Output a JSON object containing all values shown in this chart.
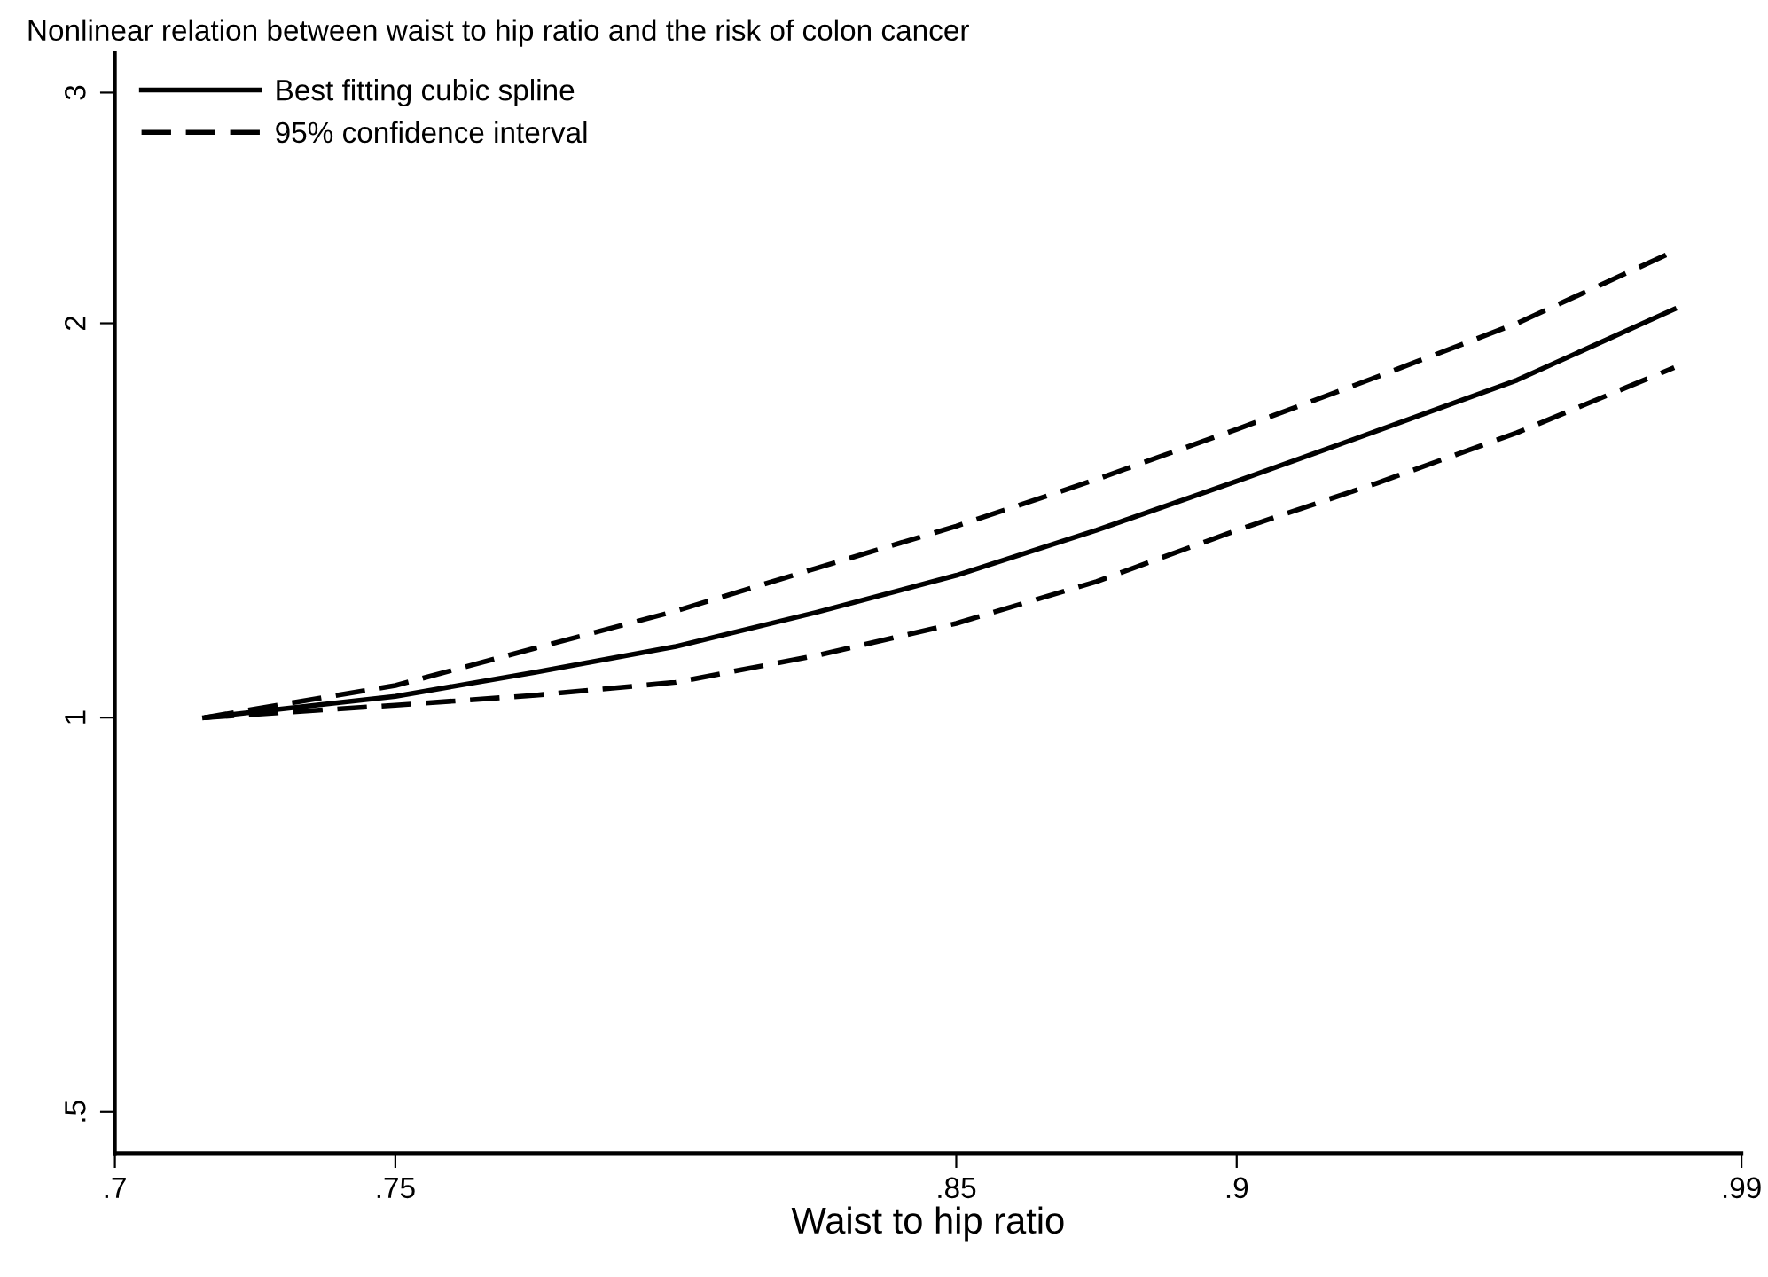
{
  "chart_data": {
    "type": "line",
    "title": "Nonlinear relation between waist to hip ratio and the risk of colon cancer",
    "xlabel": "Waist to hip ratio",
    "xlim": [
      0.7,
      0.99
    ],
    "xticks": [
      {
        "value": 0.7,
        "label": ".7"
      },
      {
        "value": 0.75,
        "label": ".75"
      },
      {
        "value": 0.85,
        "label": ".85"
      },
      {
        "value": 0.9,
        "label": ".9"
      },
      {
        "value": 0.99,
        "label": ".99"
      }
    ],
    "ylim": [
      0.465,
      3.22
    ],
    "yticks": [
      {
        "value": 0.5,
        "label": ".5"
      },
      1,
      2,
      3
    ],
    "log": "y",
    "grid": false,
    "legend": "top left",
    "x": [
      0.716,
      0.75,
      0.775,
      0.8,
      0.825,
      0.85,
      0.875,
      0.9,
      0.925,
      0.95,
      0.978
    ],
    "series": [
      {
        "name": "Best fitting cubic spline",
        "color": "#000000",
        "line_style": "solid",
        "values": [
          1.0,
          1.038,
          1.083,
          1.133,
          1.203,
          1.284,
          1.39,
          1.515,
          1.655,
          1.81,
          2.05
        ]
      },
      {
        "name": "95% confidence interval",
        "color": "#000000",
        "line_style": "dashed",
        "values": [
          1.0,
          1.058,
          1.13,
          1.206,
          1.3,
          1.4,
          1.52,
          1.66,
          1.82,
          2.0,
          2.27
        ]
      },
      {
        "color": "#000000",
        "line_style": "dashed",
        "values": [
          1.0,
          1.022,
          1.04,
          1.064,
          1.115,
          1.18,
          1.27,
          1.39,
          1.51,
          1.65,
          1.85
        ]
      }
    ]
  }
}
